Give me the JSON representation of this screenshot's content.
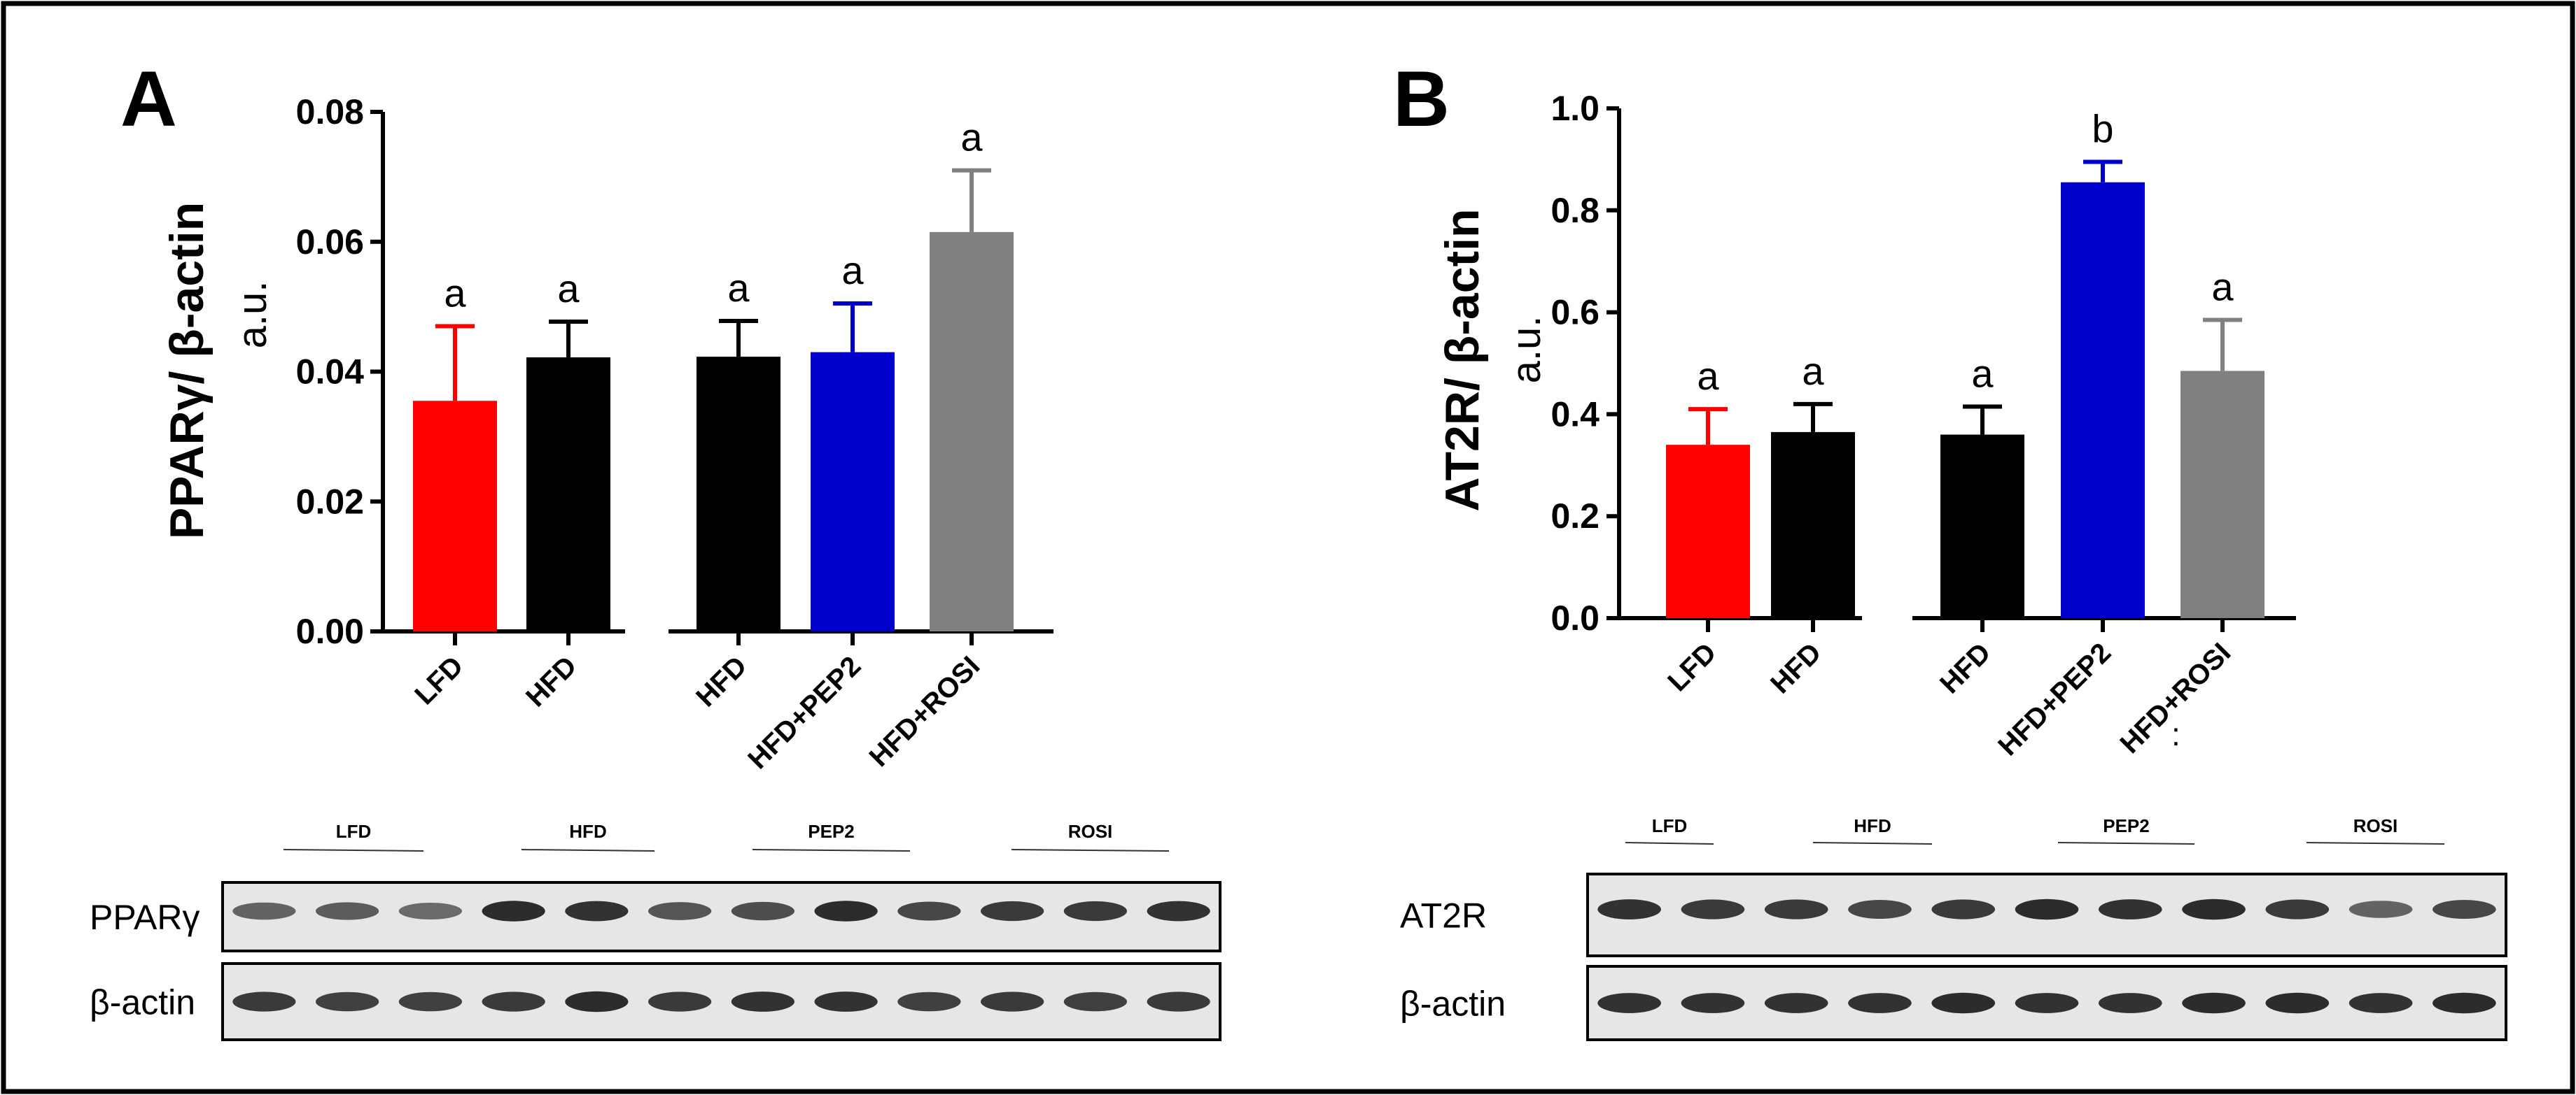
{
  "chart_data": [
    {
      "panel": "A",
      "type": "bar",
      "ylabel_main": "PPARγ/ β-actin",
      "ylabel_unit": "a.u.",
      "ylim": [
        0,
        0.08
      ],
      "yticks": [
        "0.00",
        "0.02",
        "0.04",
        "0.06",
        "0.08"
      ],
      "ytick_values": [
        0,
        0.02,
        0.04,
        0.06,
        0.08
      ],
      "groups": [
        {
          "bars": [
            {
              "label": "LFD",
              "value": 0.0355,
              "error": 0.0115,
              "color": "#ff0000",
              "error_color": "#ff0000",
              "sig": "a"
            },
            {
              "label": "HFD",
              "value": 0.0422,
              "error": 0.0055,
              "color": "#000000",
              "error_color": "#000000",
              "sig": "a"
            }
          ]
        },
        {
          "bars": [
            {
              "label": "HFD",
              "value": 0.0423,
              "error": 0.0055,
              "color": "#000000",
              "error_color": "#000000",
              "sig": "a"
            },
            {
              "label": "HFD+PEP2",
              "value": 0.043,
              "error": 0.0075,
              "color": "#0000cc",
              "error_color": "#0000cc",
              "sig": "a"
            },
            {
              "label": "HFD+ROSI",
              "value": 0.0615,
              "error": 0.0095,
              "color": "#808080",
              "error_color": "#808080",
              "sig": "a"
            }
          ]
        }
      ]
    },
    {
      "panel": "B",
      "type": "bar",
      "ylabel_main": "AT2R/ β-actin",
      "ylabel_unit": "a.u.",
      "ylim": [
        0,
        1.0
      ],
      "yticks": [
        "0.0",
        "0.2",
        "0.4",
        "0.6",
        "0.8",
        "1.0"
      ],
      "ytick_values": [
        0,
        0.2,
        0.4,
        0.6,
        0.8,
        1.0
      ],
      "extra_mark": ":",
      "groups": [
        {
          "bars": [
            {
              "label": "LFD",
              "value": 0.34,
              "error": 0.07,
              "color": "#ff0000",
              "error_color": "#ff0000",
              "sig": "a"
            },
            {
              "label": "HFD",
              "value": 0.365,
              "error": 0.055,
              "color": "#000000",
              "error_color": "#000000",
              "sig": "a"
            }
          ]
        },
        {
          "bars": [
            {
              "label": "HFD",
              "value": 0.36,
              "error": 0.055,
              "color": "#000000",
              "error_color": "#000000",
              "sig": "a"
            },
            {
              "label": "HFD+PEP2",
              "value": 0.855,
              "error": 0.04,
              "color": "#0000cc",
              "error_color": "#0000cc",
              "sig": "b"
            },
            {
              "label": "HFD+ROSI",
              "value": 0.485,
              "error": 0.1,
              "color": "#808080",
              "error_color": "#808080",
              "sig": "a"
            }
          ]
        }
      ]
    }
  ],
  "blots": {
    "A": {
      "headers": [
        "LFD",
        "HFD",
        "PEP2",
        "ROSI"
      ],
      "rows": [
        {
          "label": "PPARγ",
          "intensities": [
            0.55,
            0.6,
            0.5,
            0.95,
            0.9,
            0.65,
            0.7,
            0.95,
            0.75,
            0.85,
            0.85,
            0.9
          ]
        },
        {
          "label": "β-actin",
          "intensities": [
            0.85,
            0.8,
            0.8,
            0.85,
            0.95,
            0.85,
            0.9,
            0.9,
            0.8,
            0.85,
            0.8,
            0.85
          ]
        }
      ]
    },
    "B": {
      "headers": [
        "LFD",
        "HFD",
        "PEP2",
        "ROSI"
      ],
      "rows": [
        {
          "label": "AT2R",
          "intensities": [
            0.9,
            0.85,
            0.85,
            0.75,
            0.85,
            0.95,
            0.9,
            0.95,
            0.85,
            0.55,
            0.75
          ]
        },
        {
          "label": "β-actin",
          "intensities": [
            0.9,
            0.9,
            0.9,
            0.9,
            0.95,
            0.9,
            0.9,
            0.95,
            0.95,
            0.9,
            0.95
          ]
        }
      ]
    }
  }
}
